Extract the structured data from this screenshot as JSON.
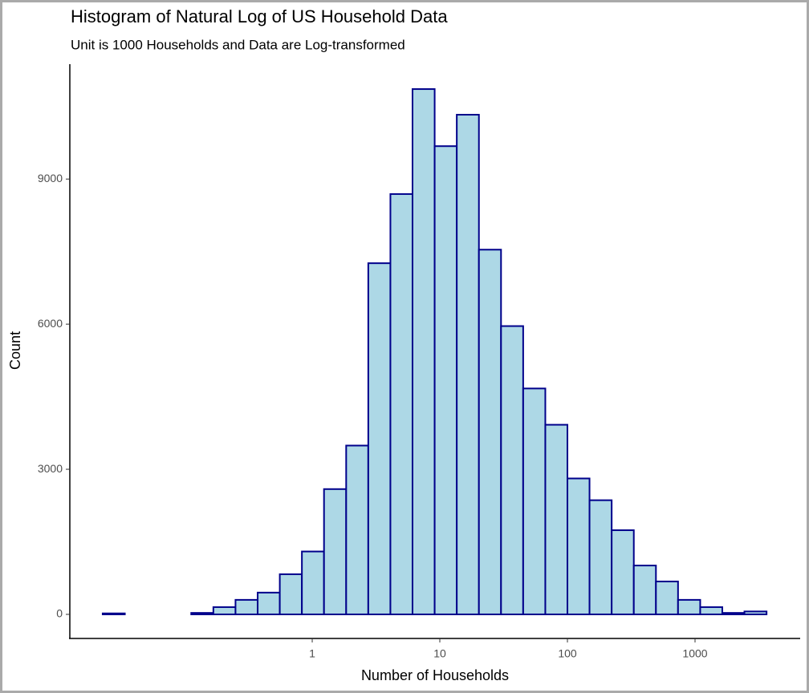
{
  "chart_data": {
    "type": "histogram",
    "title": "Histogram of Natural Log of US Household Data",
    "subtitle": "Unit is 1000 Households and Data are Log-transformed",
    "x_label": "Number of Households",
    "y_label": "Count",
    "bins": [
      0.0228,
      0.034,
      0.0507,
      0.0756,
      0.1127,
      0.168,
      0.2505,
      0.3736,
      0.557,
      0.83,
      1.237,
      1.845,
      2.75,
      4.1,
      6.11,
      9.11,
      13.58,
      20.25,
      30.18,
      45.0,
      67.1,
      100.0,
      149.0,
      222.2,
      331.3,
      493.9,
      736,
      1098,
      1636,
      2439,
      3636
    ],
    "values": [
      20,
      0,
      0,
      0,
      30,
      150,
      300,
      450,
      830,
      1300,
      2590,
      3490,
      7260,
      8690,
      10860,
      9680,
      10330,
      7540,
      5960,
      4670,
      3920,
      2810,
      2360,
      1740,
      1010,
      680,
      300,
      150,
      30,
      60
    ],
    "color": "#add8e6",
    "edge_color": "#00008b",
    "x_log": true,
    "xlim": [
      0.0126,
      6668
    ],
    "xticks": [
      1,
      10,
      100,
      1000
    ],
    "ylim": [
      -498,
      11375
    ],
    "yticks": [
      0,
      3000,
      6000,
      9000
    ]
  }
}
